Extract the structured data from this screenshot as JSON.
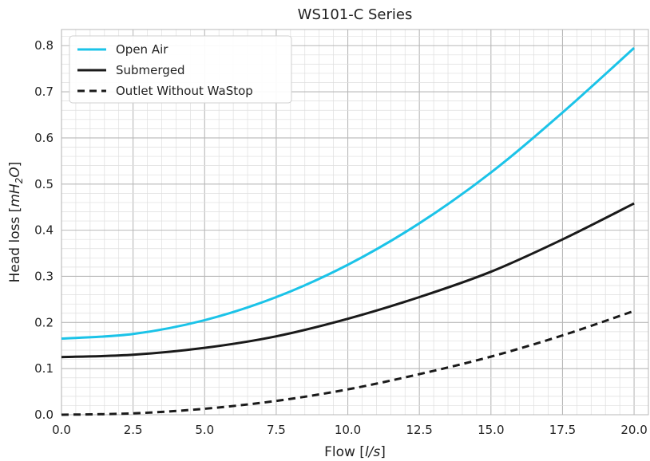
{
  "chart_data": {
    "type": "line",
    "title": "WS101-C Series",
    "xlabel": "Flow [l/s]",
    "ylabel": "Head loss [mH2O]",
    "xlim": [
      0,
      20.5
    ],
    "ylim": [
      0,
      0.835
    ],
    "x_ticks": [
      0,
      2.5,
      5,
      7.5,
      10,
      12.5,
      15,
      17.5,
      20
    ],
    "x_tick_labels": [
      "0.0",
      "2.5",
      "5.0",
      "7.5",
      "10.0",
      "12.5",
      "15.0",
      "17.5",
      "20.0"
    ],
    "y_ticks": [
      0,
      0.1,
      0.2,
      0.3,
      0.4,
      0.5,
      0.6,
      0.7,
      0.8
    ],
    "y_tick_labels": [
      "0.0",
      "0.1",
      "0.2",
      "0.3",
      "0.4",
      "0.5",
      "0.6",
      "0.7",
      "0.8"
    ],
    "grid": "major and minor",
    "legend_position": "top-left",
    "series": [
      {
        "name": "Open Air",
        "color": "#1bc3e8",
        "style": "solid",
        "x": [
          0,
          2.5,
          5,
          7.5,
          10,
          12.5,
          15,
          17.5,
          20
        ],
        "y": [
          0.165,
          0.175,
          0.205,
          0.255,
          0.325,
          0.415,
          0.525,
          0.655,
          0.795
        ]
      },
      {
        "name": "Submerged",
        "color": "#1a1a1a",
        "style": "solid",
        "x": [
          0,
          2.5,
          5,
          7.5,
          10,
          12.5,
          15,
          17.5,
          20
        ],
        "y": [
          0.125,
          0.13,
          0.145,
          0.17,
          0.208,
          0.255,
          0.31,
          0.38,
          0.458
        ]
      },
      {
        "name": "Outlet Without WaStop",
        "color": "#1a1a1a",
        "style": "dashed",
        "x": [
          0,
          2.5,
          5,
          7.5,
          10,
          12.5,
          15,
          17.5,
          20
        ],
        "y": [
          0,
          0.003,
          0.013,
          0.03,
          0.055,
          0.088,
          0.126,
          0.172,
          0.225
        ]
      }
    ]
  }
}
